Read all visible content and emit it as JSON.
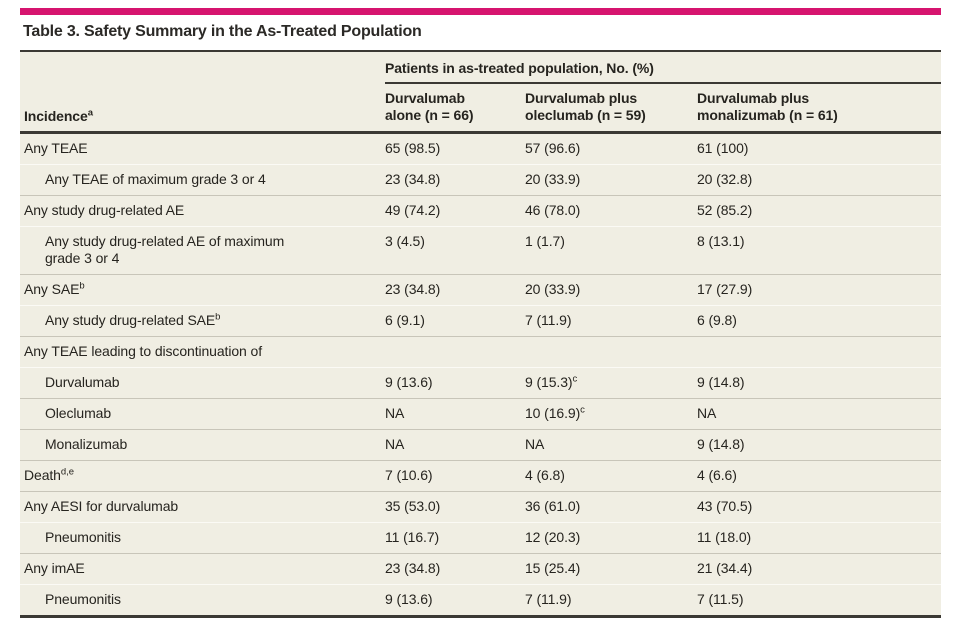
{
  "page": {
    "accent_color": "#d6146f",
    "table_background": "#f0eee3",
    "rule_color": "#3b3934"
  },
  "table": {
    "title": "Table 3. Safety Summary in the As-Treated Population",
    "spanner": "Patients in as-treated population, No. (%)",
    "row_header": {
      "label": "Incidence",
      "sup": "a"
    },
    "columns": [
      {
        "line1": "Durvalumab",
        "line2": "alone (n = 66)"
      },
      {
        "line1": "Durvalumab plus",
        "line2": "oleclumab (n = 59)"
      },
      {
        "line1": "Durvalumab plus",
        "line2": "monalizumab (n = 61)"
      }
    ],
    "rows": [
      {
        "label": "Any TEAE",
        "sup": "",
        "indent": false,
        "values": [
          {
            "text": "65 (98.5)",
            "sup": ""
          },
          {
            "text": "57 (96.6)",
            "sup": ""
          },
          {
            "text": "61 (100)",
            "sup": ""
          }
        ]
      },
      {
        "label": "Any TEAE of maximum grade 3 or 4",
        "sup": "",
        "indent": true,
        "values": [
          {
            "text": "23 (34.8)",
            "sup": ""
          },
          {
            "text": "20 (33.9)",
            "sup": ""
          },
          {
            "text": "20 (32.8)",
            "sup": ""
          }
        ]
      },
      {
        "label": "Any study drug-related AE",
        "sup": "",
        "indent": false,
        "values": [
          {
            "text": "49 (74.2)",
            "sup": ""
          },
          {
            "text": "46 (78.0)",
            "sup": ""
          },
          {
            "text": "52 (85.2)",
            "sup": ""
          }
        ]
      },
      {
        "label": "Any study drug-related AE of maximum grade 3 or 4",
        "sup": "",
        "indent": true,
        "values": [
          {
            "text": "3 (4.5)",
            "sup": ""
          },
          {
            "text": "1 (1.7)",
            "sup": ""
          },
          {
            "text": "8 (13.1)",
            "sup": ""
          }
        ]
      },
      {
        "label": "Any SAE",
        "sup": "b",
        "indent": false,
        "values": [
          {
            "text": "23 (34.8)",
            "sup": ""
          },
          {
            "text": "20 (33.9)",
            "sup": ""
          },
          {
            "text": "17 (27.9)",
            "sup": ""
          }
        ]
      },
      {
        "label": "Any study drug-related SAE",
        "sup": "b",
        "indent": true,
        "values": [
          {
            "text": "6 (9.1)",
            "sup": ""
          },
          {
            "text": "7 (11.9)",
            "sup": ""
          },
          {
            "text": "6 (9.8)",
            "sup": ""
          }
        ]
      },
      {
        "label": "Any TEAE leading to discontinuation of",
        "sup": "",
        "indent": false,
        "values": [
          {
            "text": "",
            "sup": ""
          },
          {
            "text": "",
            "sup": ""
          },
          {
            "text": "",
            "sup": ""
          }
        ]
      },
      {
        "label": "Durvalumab",
        "sup": "",
        "indent": true,
        "values": [
          {
            "text": "9 (13.6)",
            "sup": ""
          },
          {
            "text": "9 (15.3)",
            "sup": "c"
          },
          {
            "text": "9 (14.8)",
            "sup": ""
          }
        ]
      },
      {
        "label": "Oleclumab",
        "sup": "",
        "indent": true,
        "values": [
          {
            "text": "NA",
            "sup": ""
          },
          {
            "text": "10 (16.9)",
            "sup": "c"
          },
          {
            "text": "NA",
            "sup": ""
          }
        ]
      },
      {
        "label": "Monalizumab",
        "sup": "",
        "indent": true,
        "values": [
          {
            "text": "NA",
            "sup": ""
          },
          {
            "text": "NA",
            "sup": ""
          },
          {
            "text": "9 (14.8)",
            "sup": ""
          }
        ]
      },
      {
        "label": "Death",
        "sup": "d,e",
        "indent": false,
        "values": [
          {
            "text": "7 (10.6)",
            "sup": ""
          },
          {
            "text": "4 (6.8)",
            "sup": ""
          },
          {
            "text": "4 (6.6)",
            "sup": ""
          }
        ]
      },
      {
        "label": "Any AESI for durvalumab",
        "sup": "",
        "indent": false,
        "values": [
          {
            "text": "35 (53.0)",
            "sup": ""
          },
          {
            "text": "36 (61.0)",
            "sup": ""
          },
          {
            "text": "43 (70.5)",
            "sup": ""
          }
        ]
      },
      {
        "label": "Pneumonitis",
        "sup": "",
        "indent": true,
        "values": [
          {
            "text": "11 (16.7)",
            "sup": ""
          },
          {
            "text": "12 (20.3)",
            "sup": ""
          },
          {
            "text": "11 (18.0)",
            "sup": ""
          }
        ]
      },
      {
        "label": "Any imAE",
        "sup": "",
        "indent": false,
        "values": [
          {
            "text": "23 (34.8)",
            "sup": ""
          },
          {
            "text": "15 (25.4)",
            "sup": ""
          },
          {
            "text": "21 (34.4)",
            "sup": ""
          }
        ]
      },
      {
        "label": "Pneumonitis",
        "sup": "",
        "indent": true,
        "values": [
          {
            "text": "9 (13.6)",
            "sup": ""
          },
          {
            "text": "7 (11.9)",
            "sup": ""
          },
          {
            "text": "7 (11.5)",
            "sup": ""
          }
        ]
      }
    ]
  }
}
